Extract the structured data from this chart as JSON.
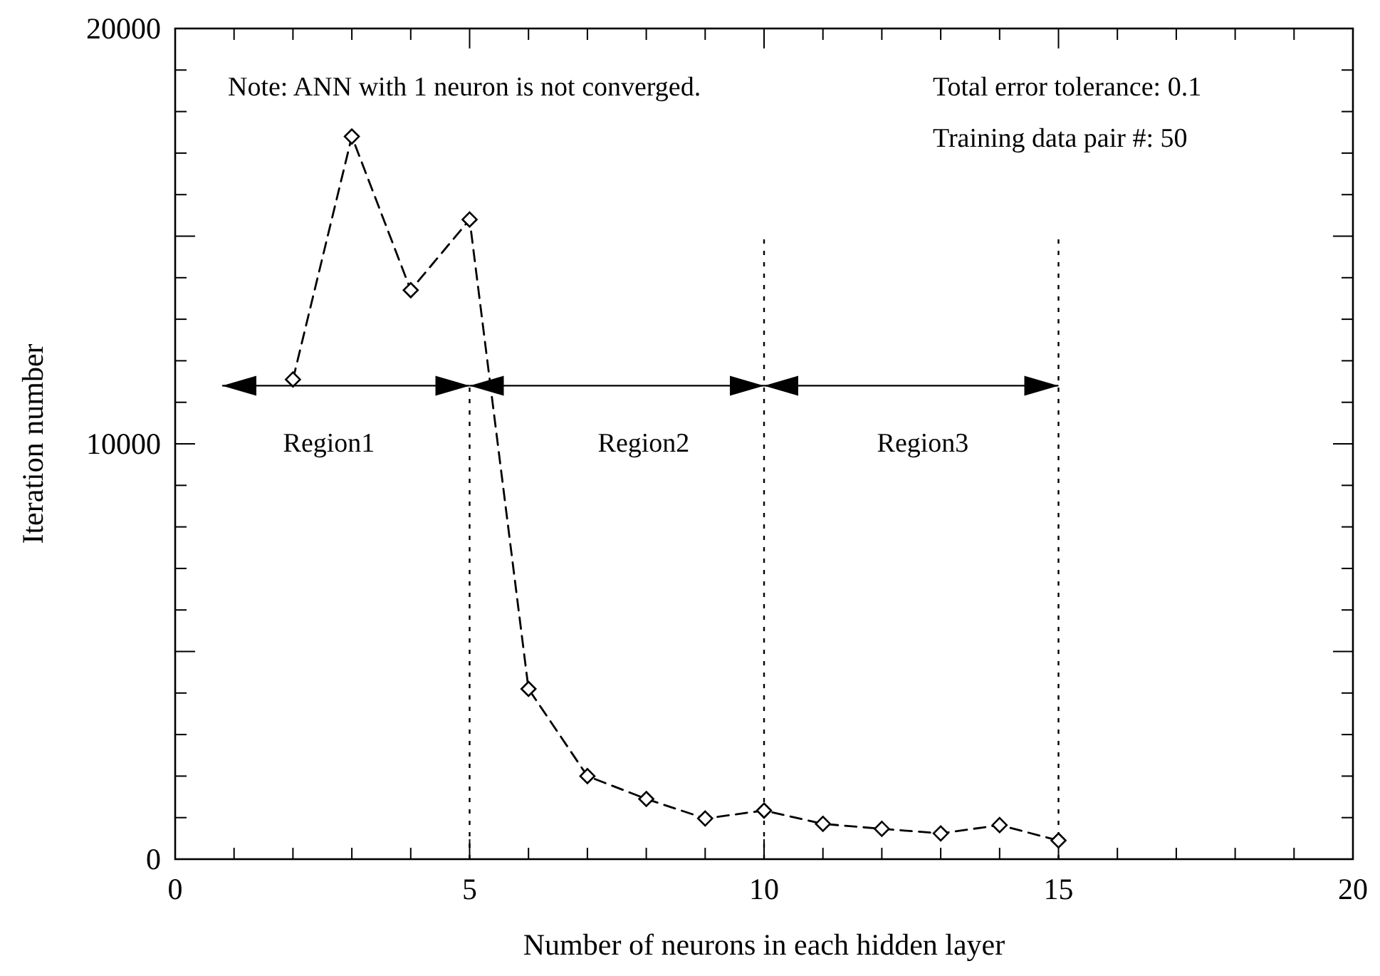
{
  "chart_data": {
    "type": "line",
    "xlabel": "Number of neurons in each hidden layer",
    "ylabel": "Iteration number",
    "xlim": [
      0,
      20
    ],
    "xticks": [
      0,
      5,
      10,
      15,
      20
    ],
    "ylim": [
      0,
      20000
    ],
    "yticks": [
      0,
      {
        "value": 5000,
        "label": null
      },
      10000,
      {
        "value": 15000,
        "label": null
      },
      20000
    ],
    "series": [
      {
        "color": "#000000",
        "marker": "diamond",
        "line_style": "dashed",
        "x": [
          2,
          3,
          4,
          5,
          6,
          7,
          8,
          9,
          10,
          11,
          12,
          13,
          14,
          15
        ],
        "values": [
          11550,
          17400,
          13700,
          15400,
          4100,
          2000,
          1450,
          980,
          1170,
          850,
          730,
          620,
          820,
          450
        ]
      }
    ],
    "ref_lines": [
      {
        "axis": "x",
        "value": 5,
        "line_style": "dotted",
        "color": "#000000"
      },
      {
        "axis": "x",
        "value": 10,
        "line_style": "dotted",
        "color": "#000000"
      },
      {
        "axis": "x",
        "value": 15,
        "line_style": "dotted",
        "color": "#000000"
      }
    ],
    "annotations": [
      "Note: ANN with 1 neuron is not converged.",
      "Total error tolerance: 0.1",
      "Training data pair #: 50",
      "Region1",
      "Region2",
      "Region3"
    ]
  }
}
